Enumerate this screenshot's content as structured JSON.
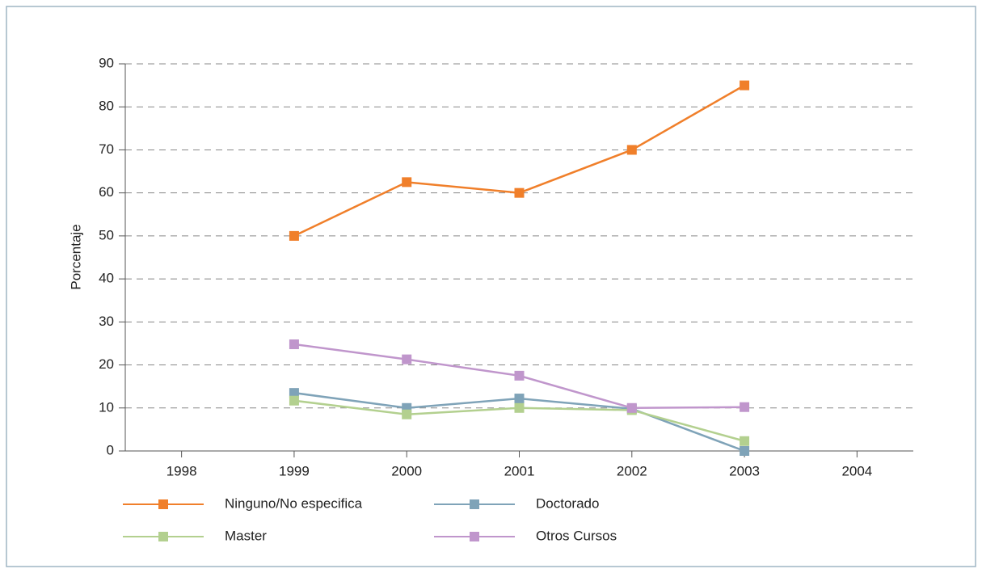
{
  "chart_data": {
    "type": "line",
    "y_label": "Porcentaje",
    "categories": [
      "1998",
      "1999",
      "2000",
      "2001",
      "2002",
      "2003",
      "2004"
    ],
    "series": [
      {
        "name": "Ninguno/No especifica",
        "color": "#f07f2a",
        "values": [
          null,
          50,
          62.5,
          60,
          70,
          85,
          null
        ]
      },
      {
        "name": "Doctorado",
        "color": "#7fa3b8",
        "values": [
          null,
          13.5,
          10,
          12.2,
          9.8,
          0,
          null
        ]
      },
      {
        "name": "Master",
        "color": "#b3d08f",
        "values": [
          null,
          11.7,
          8.5,
          10,
          9.5,
          2.3,
          null
        ]
      },
      {
        "name": "Otros Cursos",
        "color": "#c096cc",
        "values": [
          null,
          24.8,
          21.3,
          17.5,
          10,
          10.2,
          null
        ]
      }
    ],
    "ylim": [
      0,
      90
    ],
    "yticks": [
      0,
      10,
      20,
      30,
      40,
      50,
      60,
      70,
      80,
      90
    ],
    "grid": true,
    "legend": "bottom"
  }
}
